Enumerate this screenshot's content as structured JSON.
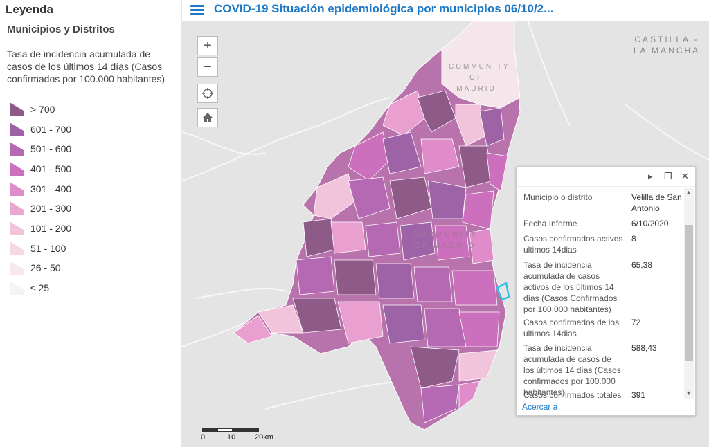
{
  "header": {
    "title": "COVID-19 Situación epidemiológica por municipios 06/10/2..."
  },
  "legend": {
    "title": "Leyenda",
    "subtitle": "Municipios y Distritos",
    "field": "Tasa de incidencia acumulada de casos de los últimos 14 días (Casos confirmados por 100.000 habitantes)",
    "items": [
      {
        "label": "> 700",
        "color": "#8e5a88"
      },
      {
        "label": "601 - 700",
        "color": "#9e62a6"
      },
      {
        "label": "501 - 600",
        "color": "#b569b2"
      },
      {
        "label": "401 - 500",
        "color": "#cc6fbd"
      },
      {
        "label": "301 - 400",
        "color": "#e08ccb"
      },
      {
        "label": "201 - 300",
        "color": "#eaa7d3"
      },
      {
        "label": "101 - 200",
        "color": "#f2c4dc"
      },
      {
        "label": "51 - 100",
        "color": "#f5d9e2"
      },
      {
        "label": "26 - 50",
        "color": "#f7e8ec"
      },
      {
        "label": "≤ 25",
        "color": "#f7f2f3"
      }
    ]
  },
  "map": {
    "region_top": "CASTILLA - LA MANCHA",
    "region_small": "COMMUNITY OF MADRID",
    "region_center": "COMMUNITY OF MADRID",
    "controls": {
      "zoom_in": "+",
      "zoom_out": "−",
      "locate_icon": "crosshair-icon",
      "home_icon": "home-icon"
    }
  },
  "popup": {
    "rows": [
      {
        "key": "Municipio o distrito",
        "value": "Velilla de San Antonio"
      },
      {
        "key": "Fecha Informe",
        "value": "6/10/2020"
      },
      {
        "key": "Casos confirmados activos ultimos 14dias",
        "value": "8"
      },
      {
        "key": "Tasa de incidencia acumulada de casos activos de los últimos 14 días (Casos Confirmados por 100.000 habitantes)",
        "value": "65,38"
      },
      {
        "key": "Casos confirmados de los ultimos 14dias",
        "value": "72"
      },
      {
        "key": "Tasa de incidencia acumulada de casos de los últimos 14 días (Casos confirmados por 100.000 habitantes)",
        "value": "588,43"
      },
      {
        "key": "Casos confirmados totales",
        "value": "391"
      }
    ],
    "zoom_link": "Acercar a"
  },
  "scalebar": {
    "labels": [
      "0",
      "10",
      "20km"
    ]
  }
}
